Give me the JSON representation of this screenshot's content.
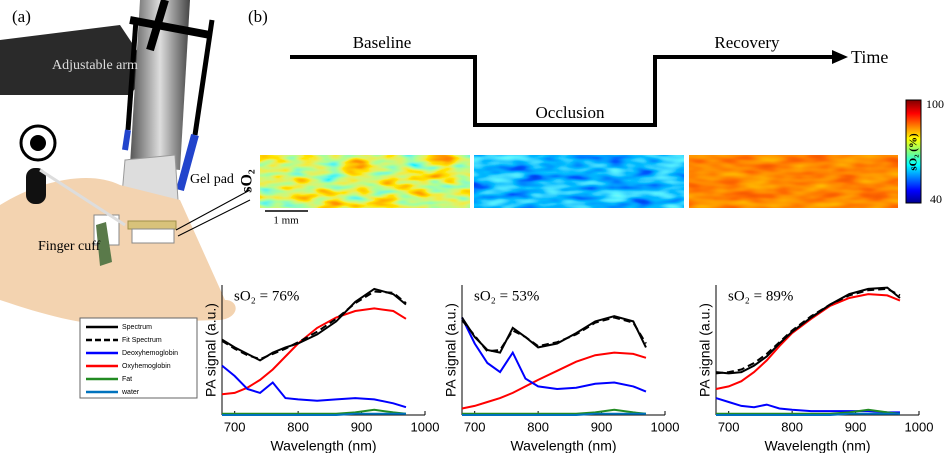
{
  "panel_a": {
    "label": "(a)",
    "arm": "Adjustable arm",
    "gel": "Gel pad",
    "cuff": "Finger cuff"
  },
  "panel_b": {
    "label": "(b)",
    "phases": [
      "Baseline",
      "Occlusion",
      "Recovery"
    ],
    "time": "Time",
    "so2": "sO₂",
    "scale": "1 mm",
    "colorbar": {
      "title": "sO₂ (%)",
      "max": 100,
      "min": 40
    }
  },
  "chart_data": [
    {
      "type": "line",
      "title": "sO₂ = 76%",
      "xlabel": "Wavelength (nm)",
      "ylabel": "PA signal (a.u.)",
      "x": [
        680,
        700,
        720,
        740,
        760,
        780,
        800,
        830,
        860,
        890,
        920,
        950,
        970
      ],
      "xlim": [
        680,
        1000
      ],
      "xticks": [
        700,
        800,
        900,
        1000
      ],
      "ylim": [
        0,
        1
      ],
      "series": [
        {
          "name": "Spectrum",
          "color": "#000000",
          "values": [
            0.58,
            0.52,
            0.47,
            0.42,
            0.48,
            0.52,
            0.55,
            0.62,
            0.72,
            0.87,
            0.97,
            0.93,
            0.85
          ]
        },
        {
          "name": "Fit Spectrum",
          "color": "#000000",
          "dash": true,
          "values": [
            0.57,
            0.51,
            0.46,
            0.43,
            0.47,
            0.51,
            0.56,
            0.64,
            0.74,
            0.86,
            0.95,
            0.94,
            0.86
          ]
        },
        {
          "name": "Deoxyhemoglobin",
          "color": "#0000ff",
          "values": [
            0.38,
            0.3,
            0.2,
            0.17,
            0.25,
            0.13,
            0.12,
            0.11,
            0.12,
            0.13,
            0.12,
            0.09,
            0.06
          ]
        },
        {
          "name": "Oxyhemoglobin",
          "color": "#ff0000",
          "values": [
            0.16,
            0.17,
            0.21,
            0.27,
            0.35,
            0.45,
            0.55,
            0.67,
            0.75,
            0.8,
            0.82,
            0.8,
            0.74
          ]
        },
        {
          "name": "Fat",
          "color": "#228b22",
          "values": [
            0.01,
            0.01,
            0.01,
            0.01,
            0.01,
            0.01,
            0.01,
            0.01,
            0.01,
            0.02,
            0.04,
            0.02,
            0.01
          ]
        },
        {
          "name": "water",
          "color": "#0072bd",
          "values": [
            0,
            0,
            0,
            0,
            0,
            0,
            0,
            0,
            0,
            0.01,
            0.01,
            0.01,
            0.01
          ]
        }
      ]
    },
    {
      "type": "line",
      "title": "sO₂ = 53%",
      "xlabel": "Wavelength (nm)",
      "ylabel": "PA signal (a.u.)",
      "x": [
        680,
        700,
        720,
        740,
        760,
        780,
        800,
        830,
        860,
        890,
        920,
        950,
        970
      ],
      "xlim": [
        680,
        1000
      ],
      "xticks": [
        700,
        800,
        900,
        1000
      ],
      "ylim": [
        0,
        1
      ],
      "series": [
        {
          "color": "#000000",
          "values": [
            0.75,
            0.6,
            0.5,
            0.48,
            0.67,
            0.6,
            0.52,
            0.55,
            0.63,
            0.72,
            0.76,
            0.72,
            0.52
          ]
        },
        {
          "color": "#000000",
          "dash": true,
          "values": [
            0.73,
            0.61,
            0.49,
            0.5,
            0.65,
            0.6,
            0.53,
            0.56,
            0.62,
            0.71,
            0.75,
            0.71,
            0.55
          ]
        },
        {
          "color": "#0000ff",
          "values": [
            0.75,
            0.55,
            0.4,
            0.33,
            0.48,
            0.28,
            0.22,
            0.2,
            0.21,
            0.24,
            0.25,
            0.22,
            0.18
          ]
        },
        {
          "color": "#ff0000",
          "values": [
            0.05,
            0.07,
            0.1,
            0.13,
            0.17,
            0.22,
            0.27,
            0.34,
            0.41,
            0.46,
            0.48,
            0.47,
            0.44
          ]
        },
        {
          "color": "#228b22",
          "values": [
            0.01,
            0.01,
            0.01,
            0.01,
            0.01,
            0.01,
            0.01,
            0.01,
            0.01,
            0.02,
            0.04,
            0.02,
            0.01
          ]
        },
        {
          "color": "#0072bd",
          "values": [
            0,
            0,
            0,
            0,
            0,
            0,
            0,
            0,
            0,
            0.01,
            0.01,
            0.01,
            0.01
          ]
        }
      ]
    },
    {
      "type": "line",
      "title": "sO₂ = 89%",
      "xlabel": "Wavelength (nm)",
      "ylabel": "PA signal (a.u.)",
      "x": [
        680,
        700,
        720,
        740,
        760,
        780,
        800,
        830,
        860,
        890,
        920,
        950,
        970
      ],
      "xlim": [
        680,
        1000
      ],
      "xticks": [
        700,
        800,
        900,
        1000
      ],
      "ylim": [
        0,
        1
      ],
      "series": [
        {
          "color": "#000000",
          "values": [
            0.33,
            0.32,
            0.33,
            0.38,
            0.45,
            0.55,
            0.64,
            0.75,
            0.85,
            0.93,
            0.97,
            0.98,
            0.9
          ]
        },
        {
          "color": "#000000",
          "dash": true,
          "values": [
            0.32,
            0.33,
            0.35,
            0.4,
            0.47,
            0.56,
            0.65,
            0.76,
            0.85,
            0.92,
            0.96,
            0.97,
            0.92
          ]
        },
        {
          "color": "#0000ff",
          "values": [
            0.13,
            0.1,
            0.07,
            0.06,
            0.08,
            0.05,
            0.04,
            0.03,
            0.03,
            0.03,
            0.03,
            0.02,
            0.02
          ]
        },
        {
          "color": "#ff0000",
          "values": [
            0.2,
            0.22,
            0.26,
            0.33,
            0.42,
            0.53,
            0.63,
            0.74,
            0.84,
            0.9,
            0.93,
            0.92,
            0.88
          ]
        },
        {
          "color": "#228b22",
          "values": [
            0.01,
            0.01,
            0.01,
            0.01,
            0.01,
            0.01,
            0.01,
            0.01,
            0.01,
            0.02,
            0.04,
            0.02,
            0.01
          ]
        },
        {
          "color": "#0072bd",
          "values": [
            0,
            0,
            0,
            0,
            0,
            0,
            0,
            0,
            0,
            0.01,
            0.01,
            0.01,
            0.01
          ]
        }
      ]
    }
  ]
}
